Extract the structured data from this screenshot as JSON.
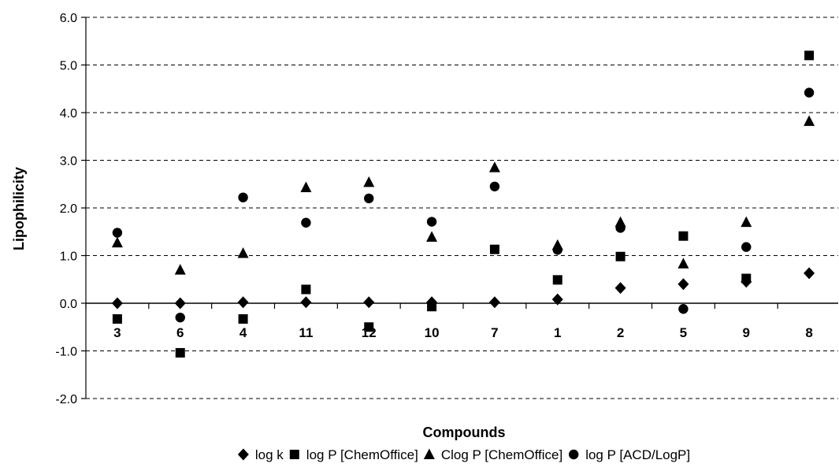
{
  "chart_data": {
    "type": "scatter",
    "xlabel": "Compounds",
    "ylabel": "Lipophilicity",
    "ylim": [
      -2.0,
      6.0
    ],
    "yticks": [
      "-2.0",
      "-1.0",
      "0.0",
      "1.0",
      "2.0",
      "3.0",
      "4.0",
      "5.0",
      "6.0"
    ],
    "grid": "horizontal dashed",
    "legend_position": "bottom",
    "categories": [
      "3",
      "6",
      "4",
      "11",
      "12",
      "10",
      "7",
      "1",
      "2",
      "5",
      "9",
      "8"
    ],
    "series": [
      {
        "name": "log k",
        "marker": "diamond",
        "symbol": "◆",
        "values": [
          0.0,
          0.0,
          0.02,
          0.02,
          0.02,
          0.02,
          0.02,
          0.08,
          0.32,
          0.4,
          0.45,
          0.63
        ]
      },
      {
        "name": "log P [ChemOffice]",
        "marker": "square",
        "symbol": "■",
        "values": [
          -0.33,
          -1.04,
          -0.33,
          0.29,
          -0.5,
          -0.07,
          1.13,
          0.49,
          0.98,
          1.41,
          0.52,
          5.2
        ]
      },
      {
        "name": "Clog P [ChemOffice]",
        "marker": "triangle",
        "symbol": "▲",
        "values": [
          1.27,
          0.7,
          1.05,
          2.43,
          2.54,
          1.39,
          2.85,
          1.22,
          1.7,
          0.83,
          1.7,
          3.82
        ]
      },
      {
        "name": "log P [ACD/LogP]",
        "marker": "circle",
        "symbol": "●",
        "values": [
          1.48,
          -0.3,
          2.22,
          1.69,
          2.2,
          1.71,
          2.45,
          1.12,
          1.58,
          -0.12,
          1.18,
          4.42
        ]
      }
    ],
    "marker_color": "#000000",
    "grid_color": "#000000"
  }
}
